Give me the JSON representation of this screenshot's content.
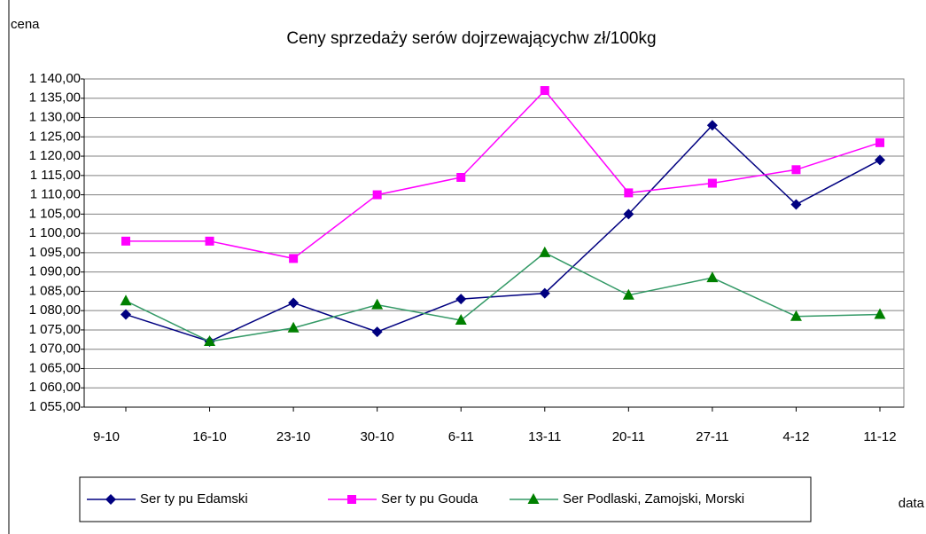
{
  "chart_data": {
    "type": "line",
    "title": "Ceny sprzedaży serów dojrzewającychw zł/100kg",
    "y_label": "cena",
    "x_label": "data",
    "categories": [
      "9-10",
      "16-10",
      "23-10",
      "30-10",
      "6-11",
      "13-11",
      "20-11",
      "27-11",
      "4-12",
      "11-12"
    ],
    "series": [
      {
        "name": "Ser ty pu Edamski",
        "color": "#000080",
        "marker": "diamond",
        "values": [
          1079,
          1072,
          1082,
          1074.5,
          1083,
          1084.5,
          1105,
          1128,
          1107.5,
          1119
        ]
      },
      {
        "name": "Ser ty pu Gouda",
        "color": "#ff00ff",
        "marker": "square",
        "values": [
          1098,
          1098,
          1093.5,
          1110,
          1114.5,
          1137,
          1110.5,
          1113,
          1116.5,
          1123.5
        ]
      },
      {
        "name": "Ser Podlaski, Zamojski, Morski",
        "color": "#339966",
        "marker": "triangle",
        "values": [
          1082.5,
          1072,
          1075.5,
          1081.5,
          1077.5,
          1095,
          1084,
          1088.5,
          1078.5,
          1079
        ]
      }
    ],
    "ylim": [
      1055,
      1140
    ],
    "yticks": [
      {
        "value": 1055,
        "label": "1 055,00"
      },
      {
        "value": 1060,
        "label": "1 060,00"
      },
      {
        "value": 1065,
        "label": "1 065,00"
      },
      {
        "value": 1070,
        "label": "1 070,00"
      },
      {
        "value": 1075,
        "label": "1 075,00"
      },
      {
        "value": 1080,
        "label": "1 080,00"
      },
      {
        "value": 1085,
        "label": "1 085,00"
      },
      {
        "value": 1090,
        "label": "1 090,00"
      },
      {
        "value": 1095,
        "label": "1 095,00"
      },
      {
        "value": 1100,
        "label": "1 100,00"
      },
      {
        "value": 1105,
        "label": "1 105,00"
      },
      {
        "value": 1110,
        "label": "1 110,00"
      },
      {
        "value": 1115,
        "label": "1 115,00"
      },
      {
        "value": 1120,
        "label": "1 120,00"
      },
      {
        "value": 1125,
        "label": "1 125,00"
      },
      {
        "value": 1130,
        "label": "1 130,00"
      },
      {
        "value": 1135,
        "label": "1 135,00"
      },
      {
        "value": 1140,
        "label": "1 140,00"
      }
    ],
    "grid": true,
    "legend": "bottom"
  }
}
